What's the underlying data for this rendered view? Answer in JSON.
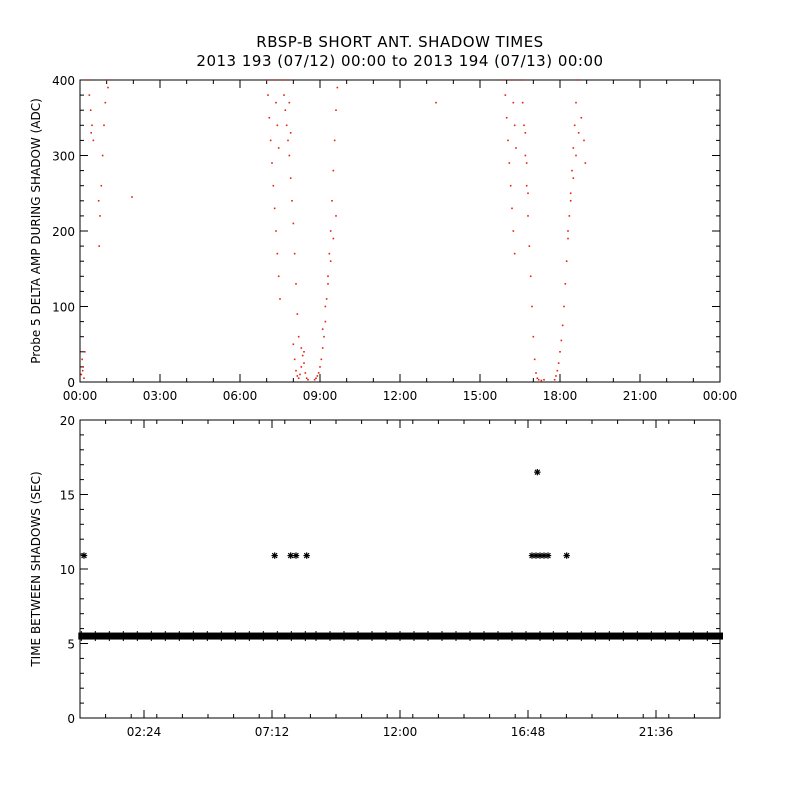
{
  "title": "RBSP-B SHORT ANT. SHADOW TIMES",
  "subtitle": "2013 193 (07/12) 00:00 to 2013 194 (07/13) 00:00",
  "colors": {
    "amp": "#e8200a",
    "time": "#000000"
  },
  "chart_data": [
    {
      "type": "scatter",
      "ylabel": "Probe 5 DELTA AMP DURING SHADOW (ADC)",
      "xlabel": "",
      "xlim": [
        0,
        24
      ],
      "ylim": [
        0,
        400
      ],
      "xticks": [
        "00:00",
        "03:00",
        "06:00",
        "09:00",
        "12:00",
        "15:00",
        "18:00",
        "21:00",
        "00:00"
      ],
      "yticks": [
        0,
        100,
        200,
        300,
        400
      ],
      "series": [
        {
          "color": "#e8200a",
          "points": [
            [
              0.05,
              10
            ],
            [
              0.08,
              30
            ],
            [
              0.12,
              20
            ],
            [
              0.15,
              5
            ],
            [
              0.18,
              40
            ],
            [
              0.1,
              15
            ],
            [
              0.3,
              400
            ],
            [
              0.35,
              380
            ],
            [
              0.4,
              360
            ],
            [
              0.45,
              340
            ],
            [
              0.5,
              320
            ],
            [
              0.42,
              330
            ],
            [
              0.7,
              240
            ],
            [
              0.75,
              220
            ],
            [
              0.72,
              180
            ],
            [
              0.8,
              260
            ],
            [
              0.85,
              300
            ],
            [
              0.9,
              340
            ],
            [
              0.95,
              370
            ],
            [
              1.0,
              400
            ],
            [
              1.05,
              390
            ],
            [
              1.95,
              245
            ],
            [
              7.0,
              400
            ],
            [
              7.05,
              380
            ],
            [
              7.1,
              350
            ],
            [
              7.15,
              320
            ],
            [
              7.2,
              290
            ],
            [
              7.25,
              260
            ],
            [
              7.3,
              230
            ],
            [
              7.35,
              200
            ],
            [
              7.4,
              170
            ],
            [
              7.45,
              140
            ],
            [
              7.5,
              110
            ],
            [
              7.3,
              400
            ],
            [
              7.35,
              370
            ],
            [
              7.4,
              340
            ],
            [
              7.45,
              310
            ],
            [
              7.6,
              400
            ],
            [
              7.65,
              380
            ],
            [
              7.7,
              360
            ],
            [
              7.75,
              340
            ],
            [
              7.8,
              320
            ],
            [
              7.85,
              300
            ],
            [
              7.9,
              270
            ],
            [
              7.95,
              240
            ],
            [
              8.0,
              210
            ],
            [
              8.05,
              170
            ],
            [
              8.1,
              130
            ],
            [
              8.15,
              90
            ],
            [
              7.8,
              400
            ],
            [
              7.85,
              370
            ],
            [
              7.9,
              330
            ],
            [
              8.0,
              50
            ],
            [
              8.05,
              30
            ],
            [
              8.1,
              15
            ],
            [
              8.15,
              8
            ],
            [
              8.2,
              5
            ],
            [
              8.25,
              10
            ],
            [
              8.3,
              20
            ],
            [
              8.35,
              35
            ],
            [
              8.4,
              25
            ],
            [
              8.45,
              12
            ],
            [
              8.5,
              5
            ],
            [
              8.55,
              3
            ],
            [
              8.2,
              60
            ],
            [
              8.3,
              45
            ],
            [
              8.4,
              40
            ],
            [
              8.8,
              3
            ],
            [
              8.85,
              5
            ],
            [
              8.9,
              8
            ],
            [
              8.95,
              12
            ],
            [
              9.0,
              20
            ],
            [
              9.05,
              30
            ],
            [
              9.1,
              45
            ],
            [
              9.15,
              60
            ],
            [
              9.2,
              80
            ],
            [
              9.25,
              110
            ],
            [
              9.3,
              140
            ],
            [
              9.35,
              170
            ],
            [
              9.4,
              200
            ],
            [
              9.45,
              240
            ],
            [
              9.5,
              280
            ],
            [
              9.55,
              320
            ],
            [
              9.6,
              360
            ],
            [
              9.65,
              390
            ],
            [
              9.1,
              70
            ],
            [
              9.2,
              100
            ],
            [
              9.3,
              130
            ],
            [
              9.4,
              160
            ],
            [
              9.5,
              190
            ],
            [
              9.6,
              220
            ],
            [
              13.35,
              370
            ],
            [
              15.9,
              400
            ],
            [
              15.95,
              380
            ],
            [
              16.0,
              350
            ],
            [
              16.05,
              320
            ],
            [
              16.1,
              290
            ],
            [
              16.15,
              260
            ],
            [
              16.2,
              230
            ],
            [
              16.25,
              200
            ],
            [
              16.3,
              170
            ],
            [
              16.2,
              400
            ],
            [
              16.25,
              370
            ],
            [
              16.3,
              340
            ],
            [
              16.35,
              310
            ],
            [
              16.55,
              400
            ],
            [
              16.6,
              370
            ],
            [
              16.65,
              340
            ],
            [
              16.7,
              300
            ],
            [
              16.75,
              260
            ],
            [
              16.8,
              220
            ],
            [
              16.85,
              180
            ],
            [
              16.9,
              140
            ],
            [
              16.95,
              100
            ],
            [
              17.0,
              60
            ],
            [
              17.05,
              30
            ],
            [
              17.1,
              12
            ],
            [
              17.15,
              5
            ],
            [
              17.2,
              3
            ],
            [
              17.3,
              2
            ],
            [
              17.4,
              3
            ],
            [
              16.7,
              330
            ],
            [
              16.75,
              290
            ],
            [
              16.8,
              250
            ],
            [
              17.8,
              3
            ],
            [
              17.85,
              8
            ],
            [
              17.9,
              15
            ],
            [
              17.95,
              25
            ],
            [
              18.0,
              40
            ],
            [
              18.05,
              55
            ],
            [
              18.1,
              75
            ],
            [
              18.15,
              100
            ],
            [
              18.2,
              130
            ],
            [
              18.25,
              160
            ],
            [
              18.3,
              190
            ],
            [
              18.35,
              220
            ],
            [
              18.4,
              250
            ],
            [
              18.45,
              280
            ],
            [
              18.5,
              310
            ],
            [
              18.55,
              340
            ],
            [
              18.6,
              370
            ],
            [
              18.65,
              400
            ],
            [
              18.3,
              200
            ],
            [
              18.4,
              240
            ],
            [
              18.5,
              270
            ],
            [
              18.6,
              300
            ],
            [
              18.7,
              330
            ],
            [
              18.8,
              350
            ],
            [
              18.9,
              320
            ],
            [
              18.95,
              290
            ]
          ]
        }
      ]
    },
    {
      "type": "scatter",
      "ylabel": "TIME BETWEEN SHADOWS (SEC)",
      "xlabel": "",
      "xlim": [
        0,
        24
      ],
      "ylim": [
        0,
        20
      ],
      "xticks": [
        "02:24",
        "07:12",
        "12:00",
        "16:48",
        "21:36"
      ],
      "xtick_values": [
        2.4,
        7.2,
        12.0,
        16.8,
        21.6
      ],
      "yticks": [
        0,
        5,
        10,
        15,
        20
      ],
      "series": [
        {
          "color": "#000000",
          "baseline": 5.5,
          "baseline_ranges": [
            [
              0.05,
              8.65
            ],
            [
              8.85,
              17.55
            ],
            [
              17.75,
              24.0
            ]
          ],
          "outliers": [
            [
              0.15,
              10.9
            ],
            [
              7.3,
              10.9
            ],
            [
              7.9,
              10.9
            ],
            [
              8.1,
              10.9
            ],
            [
              8.5,
              10.9
            ],
            [
              16.95,
              10.9
            ],
            [
              17.1,
              10.9
            ],
            [
              17.25,
              10.9
            ],
            [
              17.4,
              10.9
            ],
            [
              17.55,
              10.9
            ],
            [
              18.25,
              10.9
            ],
            [
              17.15,
              16.5
            ]
          ]
        }
      ]
    }
  ]
}
